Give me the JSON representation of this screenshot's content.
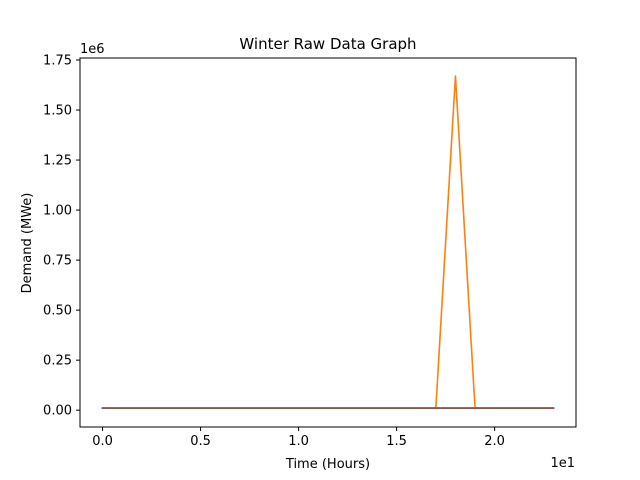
{
  "chart_data": {
    "type": "line",
    "title": "Winter Raw Data Graph",
    "xlabel": "Time (Hours)",
    "ylabel": "Demand (MWe)",
    "x_offset_text": "1e1",
    "y_offset_text": "1e6",
    "xlim": [
      -1.15,
      24.15
    ],
    "ylim": [
      -0.084,
      1.76
    ],
    "x_ticks": [
      0,
      5,
      10,
      15,
      20
    ],
    "x_tick_labels": [
      "0.0",
      "0.5",
      "1.0",
      "1.5",
      "2.0"
    ],
    "y_ticks": [
      0,
      0.25,
      0.5,
      0.75,
      1.0,
      1.25,
      1.5,
      1.75
    ],
    "y_tick_labels": [
      "0.00",
      "0.25",
      "0.50",
      "0.75",
      "1.00",
      "1.25",
      "1.50",
      "1.75"
    ],
    "grid": false,
    "x": [
      0,
      1,
      2,
      3,
      4,
      5,
      6,
      7,
      8,
      9,
      10,
      11,
      12,
      13,
      14,
      15,
      16,
      17,
      18,
      19,
      20,
      21,
      22,
      23
    ],
    "series": [
      {
        "color": "#1f77b4",
        "values": [
          0.01,
          0.01,
          0.01,
          0.01,
          0.01,
          0.01,
          0.01,
          0.01,
          0.01,
          0.01,
          0.01,
          0.01,
          0.01,
          0.01,
          0.01,
          0.01,
          0.01,
          0.01,
          0.01,
          0.01,
          0.01,
          0.01,
          0.01,
          0.01
        ]
      },
      {
        "color": "#ff7f0e",
        "values": [
          0.01,
          0.01,
          0.01,
          0.01,
          0.01,
          0.01,
          0.01,
          0.01,
          0.01,
          0.01,
          0.01,
          0.01,
          0.01,
          0.01,
          0.01,
          0.01,
          0.01,
          0.01,
          1.67,
          0.01,
          0.01,
          0.01,
          0.01,
          0.01
        ]
      },
      {
        "color": "#2ca02c",
        "values": [
          0.01,
          0.01,
          0.01,
          0.01,
          0.01,
          0.01,
          0.01,
          0.01,
          0.01,
          0.01,
          0.01,
          0.01,
          0.01,
          0.01,
          0.01,
          0.01,
          0.01,
          0.01,
          0.01,
          0.01,
          0.01,
          0.01,
          0.01,
          0.01
        ]
      },
      {
        "color": "#d62728",
        "values": [
          0.01,
          0.01,
          0.01,
          0.01,
          0.01,
          0.01,
          0.01,
          0.01,
          0.01,
          0.01,
          0.01,
          0.01,
          0.01,
          0.01,
          0.01,
          0.01,
          0.01,
          0.01,
          0.01,
          0.01,
          0.01,
          0.01,
          0.01,
          0.01
        ]
      },
      {
        "color": "#9467bd",
        "values": [
          0.01,
          0.01,
          0.01,
          0.01,
          0.01,
          0.01,
          0.01,
          0.01,
          0.01,
          0.01,
          0.01,
          0.01,
          0.01,
          0.01,
          0.01,
          0.01,
          0.01,
          0.01,
          0.01,
          0.01,
          0.01,
          0.01,
          0.01,
          0.01
        ]
      },
      {
        "color": "#8c564b",
        "values": [
          0.01,
          0.01,
          0.01,
          0.01,
          0.01,
          0.01,
          0.01,
          0.01,
          0.01,
          0.01,
          0.01,
          0.01,
          0.01,
          0.01,
          0.01,
          0.01,
          0.01,
          0.01,
          0.01,
          0.01,
          0.01,
          0.01,
          0.01,
          0.01
        ]
      }
    ]
  }
}
